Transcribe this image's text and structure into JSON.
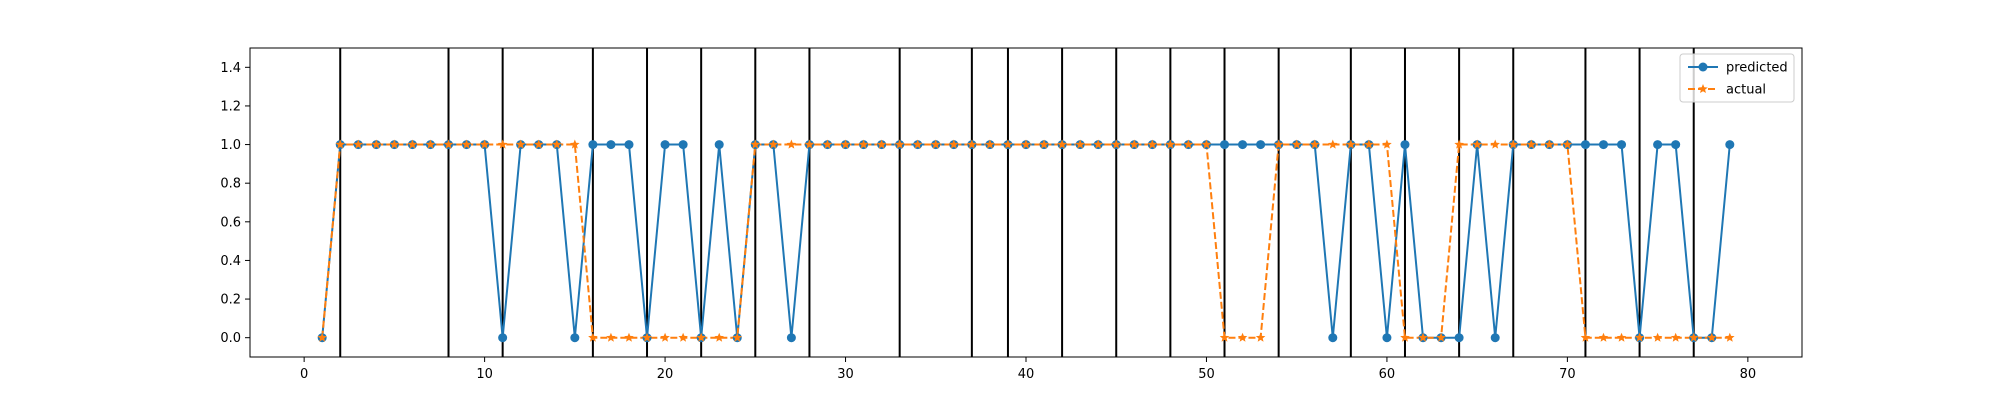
{
  "chart_data": {
    "type": "line",
    "title": "",
    "xlabel": "",
    "ylabel": "",
    "xlim": [
      -3,
      83
    ],
    "ylim": [
      -0.1,
      1.5
    ],
    "x_ticks": [
      0,
      10,
      20,
      30,
      40,
      50,
      60,
      70,
      80
    ],
    "y_ticks": [
      0.0,
      0.2,
      0.4,
      0.6,
      0.8,
      1.0,
      1.2,
      1.4
    ],
    "x_tick_labels": [
      "0",
      "10",
      "20",
      "30",
      "40",
      "50",
      "60",
      "70",
      "80"
    ],
    "y_tick_labels": [
      "0.0",
      "0.2",
      "0.4",
      "0.6",
      "0.8",
      "1.0",
      "1.2",
      "1.4"
    ],
    "grid": false,
    "legend_position": "top-right",
    "vertical_lines": [
      2,
      8,
      11,
      16,
      19,
      22,
      25,
      28,
      33,
      37,
      39,
      42,
      45,
      48,
      51,
      54,
      58,
      61,
      64,
      67,
      71,
      74,
      77
    ],
    "x": [
      1,
      2,
      3,
      4,
      5,
      6,
      7,
      8,
      9,
      10,
      11,
      12,
      13,
      14,
      15,
      16,
      17,
      18,
      19,
      20,
      21,
      22,
      23,
      24,
      25,
      26,
      27,
      28,
      29,
      30,
      31,
      32,
      33,
      34,
      35,
      36,
      37,
      38,
      39,
      40,
      41,
      42,
      43,
      44,
      45,
      46,
      47,
      48,
      49,
      50,
      51,
      52,
      53,
      54,
      55,
      56,
      57,
      58,
      59,
      60,
      61,
      62,
      63,
      64,
      65,
      66,
      67,
      68,
      69,
      70,
      71,
      72,
      73,
      74,
      75,
      76,
      77,
      78,
      79
    ],
    "series": [
      {
        "name": "predicted",
        "color": "#1f77b4",
        "marker": "circle",
        "linestyle": "solid",
        "values": [
          0,
          1,
          1,
          1,
          1,
          1,
          1,
          1,
          1,
          1,
          0,
          1,
          1,
          1,
          0,
          1,
          1,
          1,
          0,
          1,
          1,
          0,
          1,
          0,
          1,
          1,
          0,
          1,
          1,
          1,
          1,
          1,
          1,
          1,
          1,
          1,
          1,
          1,
          1,
          1,
          1,
          1,
          1,
          1,
          1,
          1,
          1,
          1,
          1,
          1,
          1,
          1,
          1,
          1,
          1,
          1,
          0,
          1,
          1,
          0,
          1,
          0,
          0,
          0,
          1,
          0,
          1,
          1,
          1,
          1,
          1,
          1,
          1,
          0,
          1,
          1,
          0,
          0,
          1
        ]
      },
      {
        "name": "actual",
        "color": "#ff7f0e",
        "marker": "star",
        "linestyle": "dashed",
        "values": [
          0,
          1,
          1,
          1,
          1,
          1,
          1,
          1,
          1,
          1,
          1,
          1,
          1,
          1,
          1,
          0,
          0,
          0,
          0,
          0,
          0,
          0,
          0,
          0,
          1,
          1,
          1,
          1,
          1,
          1,
          1,
          1,
          1,
          1,
          1,
          1,
          1,
          1,
          1,
          1,
          1,
          1,
          1,
          1,
          1,
          1,
          1,
          1,
          1,
          1,
          0,
          0,
          0,
          1,
          1,
          1,
          1,
          1,
          1,
          1,
          0,
          0,
          0,
          1,
          1,
          1,
          1,
          1,
          1,
          1,
          0,
          0,
          0,
          0,
          0,
          0,
          0,
          0,
          0
        ]
      }
    ]
  }
}
